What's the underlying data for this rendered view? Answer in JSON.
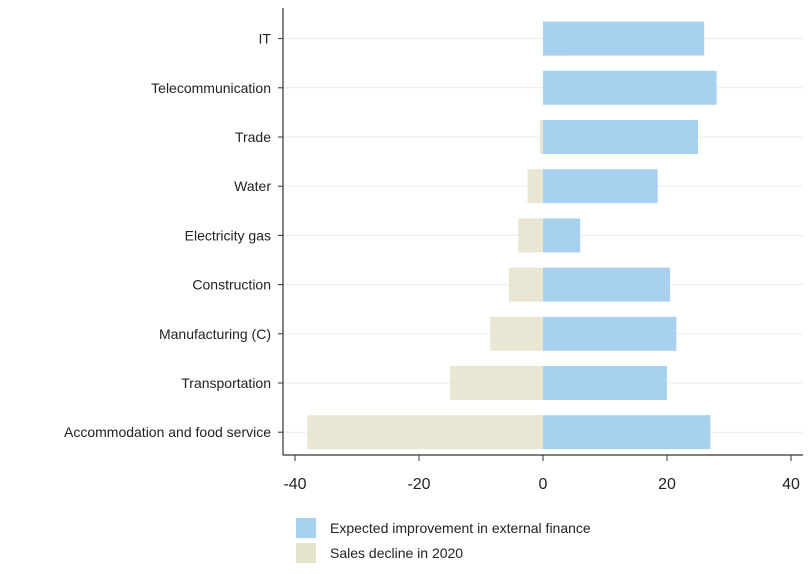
{
  "chart_data": {
    "type": "bar",
    "orientation": "horizontal",
    "stacked": false,
    "categories": [
      "IT",
      "Telecommunication",
      "Trade",
      "Water",
      "Electricity gas",
      "Construction",
      "Manufacturing (C)",
      "Transportation",
      "Accommodation and food service"
    ],
    "series": [
      {
        "name": "Expected improvement in external finance",
        "color": "#a8d1f0",
        "values": [
          26,
          28,
          25,
          18.5,
          6,
          20.5,
          21.5,
          20,
          27
        ]
      },
      {
        "name": "Sales decline in 2020",
        "color": "#e5e3cc",
        "values": [
          4,
          0,
          -0.5,
          -2.5,
          -4,
          -5.5,
          -8.5,
          -15,
          -38
        ]
      }
    ],
    "xlim": [
      -41,
      42
    ],
    "xticks": [
      -40,
      -20,
      0,
      20,
      40
    ],
    "xtick_labels": [
      "-40",
      "-20",
      "0",
      "20",
      "40"
    ],
    "grid": true,
    "legend_position": "bottom"
  }
}
